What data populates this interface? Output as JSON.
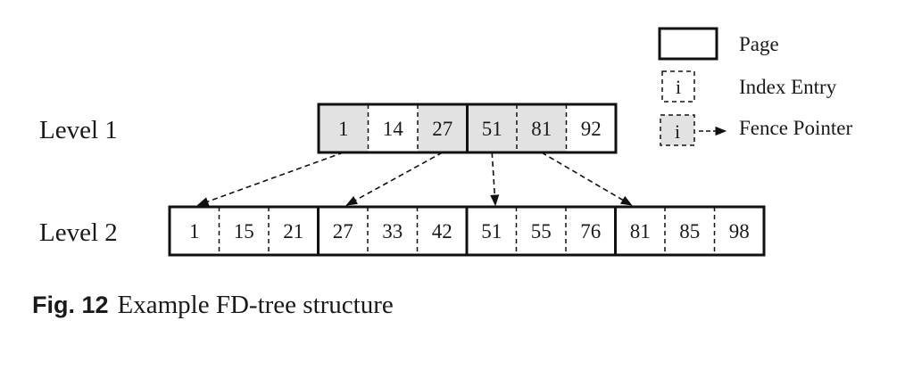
{
  "diagram": {
    "colors": {
      "stroke": "#111111",
      "fence_fill": "#e2e2e2",
      "background": "#ffffff",
      "text": "#1a1a1a"
    },
    "levels": [
      {
        "label": "Level 1",
        "pages": [
          {
            "entries": [
              {
                "value": "1",
                "fence": true
              },
              {
                "value": "14",
                "fence": false
              },
              {
                "value": "27",
                "fence": true
              }
            ]
          },
          {
            "entries": [
              {
                "value": "51",
                "fence": true
              },
              {
                "value": "81",
                "fence": true
              },
              {
                "value": "92",
                "fence": false
              }
            ]
          }
        ]
      },
      {
        "label": "Level 2",
        "pages": [
          {
            "entries": [
              {
                "value": "1",
                "fence": false
              },
              {
                "value": "15",
                "fence": false
              },
              {
                "value": "21",
                "fence": false
              }
            ]
          },
          {
            "entries": [
              {
                "value": "27",
                "fence": false
              },
              {
                "value": "33",
                "fence": false
              },
              {
                "value": "42",
                "fence": false
              }
            ]
          },
          {
            "entries": [
              {
                "value": "51",
                "fence": false
              },
              {
                "value": "55",
                "fence": false
              },
              {
                "value": "76",
                "fence": false
              }
            ]
          },
          {
            "entries": [
              {
                "value": "81",
                "fence": false
              },
              {
                "value": "85",
                "fence": false
              },
              {
                "value": "98",
                "fence": false
              }
            ]
          }
        ]
      }
    ],
    "pointers": [
      {
        "from_value": "1",
        "to_page": 0
      },
      {
        "from_value": "27",
        "to_page": 1
      },
      {
        "from_value": "51",
        "to_page": 2
      },
      {
        "from_value": "81",
        "to_page": 3
      }
    ],
    "legend": {
      "page_label": "Page",
      "index_entry_symbol": "i",
      "index_entry_label": "Index Entry",
      "fence_pointer_symbol": "i",
      "fence_pointer_label": "Fence Pointer"
    }
  },
  "caption": {
    "figure_number": "Fig. 12",
    "text": "Example FD-tree structure"
  }
}
